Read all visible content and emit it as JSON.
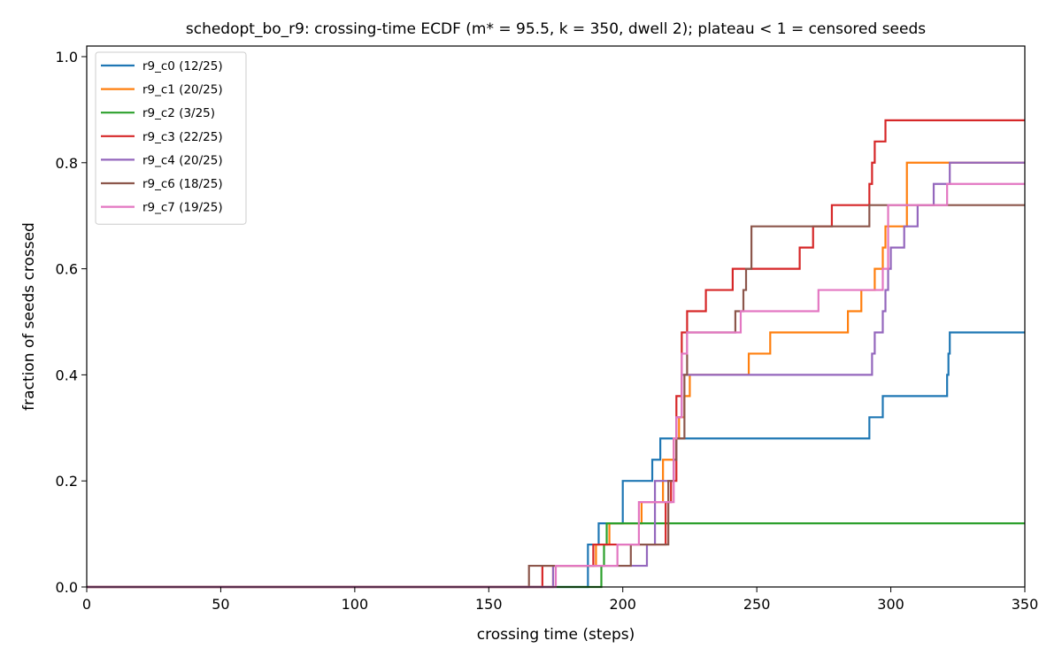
{
  "chart_data": {
    "type": "line",
    "step": "post",
    "title": "schedopt_bo_r9: crossing-time ECDF (m* = 95.5, k = 350, dwell 2); plateau < 1 = censored seeds",
    "xlabel": "crossing time (steps)",
    "ylabel": "fraction of seeds crossed",
    "xlim": [
      0,
      350
    ],
    "ylim": [
      0,
      1.02
    ],
    "xticks": [
      0,
      50,
      100,
      150,
      200,
      250,
      300,
      350
    ],
    "xtick_labels": [
      "0",
      "50",
      "100",
      "150",
      "200",
      "250",
      "300",
      "350"
    ],
    "yticks": [
      0,
      0.2,
      0.4,
      0.6,
      0.8,
      1.0
    ],
    "ytick_labels": [
      "0.0",
      "0.2",
      "0.4",
      "0.6",
      "0.8",
      "1.0"
    ],
    "grid": false,
    "legend_position": "upper-left",
    "series": [
      {
        "name": "r9_c0 (12/25)",
        "color": "#1f77b4",
        "x": [
          0,
          187,
          191,
          200,
          207,
          211,
          214,
          222,
          292,
          297,
          321,
          321.5,
          322,
          350
        ],
        "y": [
          0,
          0.08,
          0.12,
          0.2,
          0.2,
          0.24,
          0.28,
          0.28,
          0.32,
          0.36,
          0.4,
          0.44,
          0.48,
          0.48
        ]
      },
      {
        "name": "r9_c1 (20/25)",
        "color": "#ff7f0e",
        "x": [
          0,
          174,
          190,
          195,
          207,
          215,
          219,
          221,
          223,
          225,
          247,
          255,
          284,
          289,
          294,
          297,
          298,
          306,
          321,
          350
        ],
        "y": [
          0,
          0.04,
          0.08,
          0.12,
          0.16,
          0.24,
          0.28,
          0.32,
          0.36,
          0.4,
          0.44,
          0.48,
          0.52,
          0.56,
          0.6,
          0.64,
          0.68,
          0.8,
          0.8,
          0.8
        ]
      },
      {
        "name": "r9_c2 (3/25)",
        "color": "#2ca02c",
        "x": [
          0,
          192,
          193,
          194,
          350
        ],
        "y": [
          0,
          0.04,
          0.08,
          0.12,
          0.12
        ]
      },
      {
        "name": "r9_c3 (22/25)",
        "color": "#d62728",
        "x": [
          0,
          170,
          189,
          216,
          218,
          220,
          222,
          224,
          231,
          241,
          245,
          266,
          271,
          278,
          292,
          293,
          294,
          296,
          298,
          350
        ],
        "y": [
          0,
          0.04,
          0.08,
          0.16,
          0.2,
          0.36,
          0.48,
          0.52,
          0.56,
          0.6,
          0.6,
          0.64,
          0.68,
          0.72,
          0.76,
          0.8,
          0.84,
          0.84,
          0.88,
          0.88
        ]
      },
      {
        "name": "r9_c4 (20/25)",
        "color": "#9467bd",
        "x": [
          0,
          174,
          209,
          212,
          219,
          220,
          222,
          247,
          293,
          294,
          297,
          298,
          299,
          300,
          305,
          310,
          316,
          320,
          322,
          350
        ],
        "y": [
          0,
          0.04,
          0.08,
          0.2,
          0.24,
          0.32,
          0.4,
          0.4,
          0.44,
          0.48,
          0.52,
          0.56,
          0.6,
          0.64,
          0.68,
          0.72,
          0.76,
          0.76,
          0.8,
          0.8
        ]
      },
      {
        "name": "r9_c6 (18/25)",
        "color": "#8c564b",
        "x": [
          0,
          165,
          203,
          217,
          219,
          220,
          223,
          224,
          242,
          245,
          246,
          248,
          272,
          292,
          300,
          350
        ],
        "y": [
          0,
          0.04,
          0.08,
          0.2,
          0.24,
          0.28,
          0.4,
          0.48,
          0.52,
          0.56,
          0.6,
          0.68,
          0.68,
          0.72,
          0.72,
          0.72
        ]
      },
      {
        "name": "r9_c7 (19/25)",
        "color": "#e377c2",
        "x": [
          0,
          175,
          198,
          206,
          210,
          219,
          220,
          222,
          224,
          244,
          273,
          297,
          299,
          308,
          321,
          350
        ],
        "y": [
          0,
          0.04,
          0.08,
          0.16,
          0.16,
          0.28,
          0.32,
          0.44,
          0.48,
          0.52,
          0.56,
          0.6,
          0.72,
          0.72,
          0.76,
          0.76
        ]
      }
    ]
  }
}
